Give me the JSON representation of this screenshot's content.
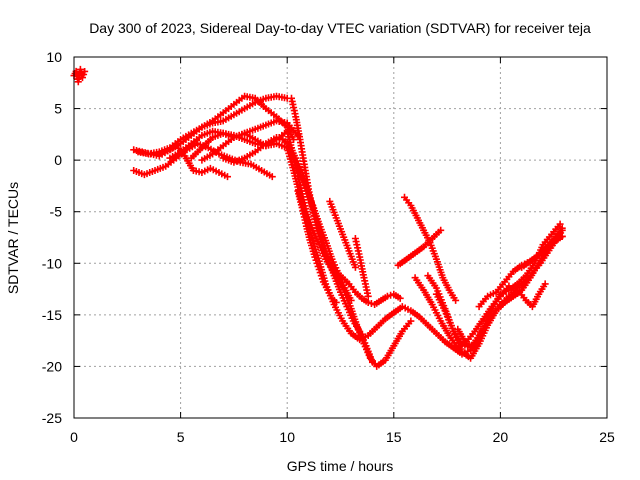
{
  "chart_data": {
    "type": "scatter",
    "title": "Day 300 of 2023, Sidereal Day-to-day VTEC variation (SDTVAR) for receiver teja",
    "xlabel": "GPS time / hours",
    "ylabel": "SDTVAR / TECUs",
    "xlim": [
      0,
      25
    ],
    "ylim": [
      -25,
      10
    ],
    "xticks": [
      "0",
      "5",
      "10",
      "15",
      "20",
      "25"
    ],
    "yticks": [
      "10",
      "5",
      "0",
      "-5",
      "-10",
      "-15",
      "-20",
      "-25"
    ],
    "grid": true,
    "legend": "none",
    "marker": "plus",
    "color": "#ff0000",
    "series": [
      {
        "x": [
          0.0,
          0.1,
          0.2,
          0.3,
          0.4,
          0.5
        ],
        "y": [
          8.2,
          8.6,
          7.6,
          8.8,
          8.0,
          8.6
        ]
      },
      {
        "x": [
          2.8,
          3.2,
          3.6,
          4.0,
          4.4,
          4.8,
          5.2,
          5.6,
          6.0,
          6.4,
          6.8,
          7.2
        ],
        "y": [
          1.0,
          0.8,
          0.6,
          0.4,
          0.9,
          1.4,
          0.4,
          -1.0,
          -1.2,
          -0.8,
          -1.2,
          -1.6
        ]
      },
      {
        "x": [
          2.8,
          3.3,
          3.8,
          4.3,
          4.8,
          5.3,
          5.8,
          6.3,
          6.8,
          7.3,
          7.8,
          8.3,
          8.8,
          9.3
        ],
        "y": [
          -1.0,
          -1.4,
          -1.0,
          -0.6,
          0.2,
          1.0,
          1.6,
          1.2,
          0.6,
          0.2,
          -0.2,
          -0.4,
          -1.0,
          -1.6
        ]
      },
      {
        "x": [
          3.0,
          3.5,
          4.0,
          4.5,
          5.0,
          5.5,
          6.0,
          6.5,
          7.0,
          7.5,
          8.0,
          8.5,
          9.0,
          9.5,
          10.0
        ],
        "y": [
          0.8,
          0.6,
          0.8,
          1.2,
          2.0,
          2.6,
          3.2,
          3.6,
          3.8,
          4.4,
          5.0,
          5.6,
          6.0,
          6.2,
          6.0
        ]
      },
      {
        "x": [
          4.0,
          4.5,
          5.0,
          5.5,
          6.0,
          6.5,
          7.0,
          7.5,
          8.0,
          8.5,
          9.0,
          9.5,
          10.0,
          10.3
        ],
        "y": [
          0.6,
          1.0,
          1.6,
          2.4,
          3.2,
          3.8,
          4.6,
          5.4,
          6.2,
          6.0,
          5.0,
          4.2,
          3.2,
          2.0
        ]
      },
      {
        "x": [
          4.5,
          5.0,
          5.5,
          6.0,
          6.5,
          7.0,
          7.5,
          8.0,
          8.5,
          9.0,
          9.5,
          10.0,
          10.5
        ],
        "y": [
          0.2,
          0.8,
          1.6,
          2.4,
          2.8,
          2.6,
          2.2,
          2.6,
          3.0,
          3.4,
          3.8,
          3.6,
          2.4
        ]
      },
      {
        "x": [
          5.5,
          6.0,
          6.5,
          7.0,
          7.5,
          8.0,
          8.5,
          9.0,
          9.5,
          10.0,
          10.3,
          10.6,
          10.9,
          11.2,
          11.5,
          11.8,
          12.2,
          12.6,
          13.0,
          13.4,
          13.8,
          14.2,
          14.6,
          15.0,
          15.4,
          15.8,
          16.2,
          16.6,
          17.0,
          17.4,
          17.8,
          18.2,
          18.6,
          19.0
        ],
        "y": [
          0.2,
          1.2,
          2.2,
          2.6,
          2.4,
          2.0,
          1.6,
          1.4,
          1.6,
          1.2,
          -1.0,
          -3.4,
          -5.6,
          -7.8,
          -9.8,
          -12.0,
          -14.0,
          -15.6,
          -16.8,
          -17.4,
          -17.0,
          -16.2,
          -15.4,
          -14.8,
          -14.2,
          -14.6,
          -15.2,
          -16.0,
          -16.8,
          -17.6,
          -18.2,
          -18.8,
          -18.4,
          -17.4
        ]
      },
      {
        "x": [
          6.0,
          6.5,
          7.0,
          7.5,
          8.0,
          8.5,
          9.0,
          9.5,
          10.0,
          10.3,
          10.6,
          10.9,
          11.2,
          11.5,
          11.8,
          12.1,
          12.4,
          12.7,
          13.0,
          13.3,
          13.6,
          13.9,
          14.2,
          14.6,
          15.0,
          15.4,
          15.8
        ],
        "y": [
          0.0,
          0.6,
          1.4,
          2.2,
          2.6,
          2.0,
          1.4,
          2.0,
          2.8,
          0.4,
          -2.4,
          -5.0,
          -6.8,
          -8.2,
          -9.6,
          -10.6,
          -11.6,
          -12.8,
          -14.4,
          -16.2,
          -17.8,
          -19.2,
          -20.0,
          -19.4,
          -18.0,
          -16.6,
          -15.6
        ]
      },
      {
        "x": [
          7.0,
          7.5,
          8.0,
          8.5,
          9.0,
          9.5,
          9.8,
          10.1,
          10.4,
          10.7,
          11.0,
          11.3,
          11.6,
          11.9,
          12.2,
          12.5,
          12.8,
          13.1,
          13.4,
          13.7,
          14.0
        ],
        "y": [
          0.2,
          -0.2,
          0.2,
          0.8,
          1.6,
          2.2,
          2.0,
          1.4,
          0.2,
          -1.2,
          -3.2,
          -5.2,
          -7.4,
          -9.4,
          -11.2,
          -12.8,
          -14.2,
          -15.6,
          -16.6,
          -18.0,
          -19.6
        ]
      },
      {
        "x": [
          10.2,
          10.4,
          10.6,
          10.8,
          11.0,
          11.2,
          11.4,
          11.6,
          11.8,
          12.0,
          12.3,
          12.6,
          12.9,
          13.2,
          13.5,
          13.8,
          14.1,
          14.4,
          14.7,
          15.0,
          15.3
        ],
        "y": [
          6.0,
          4.2,
          2.0,
          -0.4,
          -2.8,
          -4.8,
          -6.6,
          -8.0,
          -9.2,
          -10.0,
          -10.8,
          -11.4,
          -12.0,
          -12.8,
          -13.4,
          -13.8,
          -14.0,
          -13.6,
          -13.2,
          -13.0,
          -13.4
        ]
      },
      {
        "x": [
          10.0,
          10.3,
          10.6,
          10.9,
          11.2,
          11.5,
          11.8,
          12.1,
          12.4,
          12.7,
          13.0
        ],
        "y": [
          1.6,
          0.0,
          -1.4,
          -3.0,
          -4.4,
          -6.2,
          -7.8,
          -9.6,
          -11.0,
          -12.4,
          -13.6
        ]
      },
      {
        "x": [
          10.5,
          10.7,
          10.9,
          11.1,
          11.3,
          11.5,
          11.7,
          11.9,
          12.1,
          12.3
        ],
        "y": [
          -3.0,
          -4.6,
          -6.4,
          -8.0,
          -9.4,
          -10.6,
          -11.8,
          -12.6,
          -13.4,
          -13.8
        ]
      },
      {
        "x": [
          12.0,
          12.3,
          12.6,
          12.9,
          13.2
        ],
        "y": [
          -4.0,
          -5.6,
          -7.2,
          -8.8,
          -10.4
        ]
      },
      {
        "x": [
          13.2,
          13.4,
          13.6,
          13.8
        ],
        "y": [
          -7.6,
          -9.4,
          -11.4,
          -13.2
        ]
      },
      {
        "x": [
          15.5,
          15.8,
          16.1,
          16.4,
          16.7,
          17.0,
          17.3,
          17.6,
          17.9
        ],
        "y": [
          -3.6,
          -4.4,
          -5.6,
          -6.8,
          -8.0,
          -9.6,
          -11.4,
          -12.6,
          -13.6
        ]
      },
      {
        "x": [
          15.2,
          15.6,
          16.0,
          16.4,
          16.8,
          17.2
        ],
        "y": [
          -10.2,
          -9.6,
          -9.0,
          -8.4,
          -7.6,
          -6.8
        ]
      },
      {
        "x": [
          16.0,
          16.4,
          16.8,
          17.2,
          17.6,
          18.0,
          18.4,
          18.8,
          19.2,
          19.6,
          20.0,
          20.4
        ],
        "y": [
          -11.4,
          -12.6,
          -14.0,
          -15.6,
          -17.0,
          -18.2,
          -17.6,
          -16.6,
          -15.4,
          -14.2,
          -13.2,
          -12.2
        ]
      },
      {
        "x": [
          16.6,
          17.0,
          17.4,
          17.8,
          18.2,
          18.6,
          19.0,
          19.4,
          19.8,
          20.2,
          20.6,
          21.0,
          21.4,
          21.8,
          22.2,
          22.6,
          22.9
        ],
        "y": [
          -11.2,
          -12.4,
          -14.4,
          -16.6,
          -17.8,
          -18.2,
          -17.0,
          -15.6,
          -14.6,
          -13.8,
          -13.2,
          -12.6,
          -11.4,
          -10.0,
          -8.6,
          -7.4,
          -6.6
        ]
      },
      {
        "x": [
          17.0,
          17.4,
          17.8,
          18.2,
          18.6,
          19.0,
          19.4,
          19.8,
          20.2,
          20.6,
          21.0,
          21.4,
          21.8,
          22.2,
          22.6,
          22.9
        ],
        "y": [
          -13.0,
          -14.6,
          -16.6,
          -18.6,
          -19.2,
          -17.8,
          -16.0,
          -14.6,
          -13.6,
          -12.8,
          -12.0,
          -11.2,
          -10.2,
          -9.0,
          -7.8,
          -6.8
        ]
      },
      {
        "x": [
          18.0,
          18.4,
          18.8,
          19.2,
          19.6,
          20.0,
          20.4,
          20.8,
          21.2,
          21.6,
          22.0,
          22.4,
          22.8
        ],
        "y": [
          -16.4,
          -17.8,
          -18.0,
          -16.4,
          -14.4,
          -13.0,
          -12.6,
          -12.0,
          -11.2,
          -10.0,
          -8.2,
          -7.2,
          -6.2
        ]
      },
      {
        "x": [
          19.0,
          19.4,
          19.8,
          20.2,
          20.6,
          21.0,
          21.4,
          21.8,
          22.2,
          22.6,
          22.9
        ],
        "y": [
          -14.2,
          -13.2,
          -12.8,
          -11.8,
          -10.8,
          -10.2,
          -9.8,
          -9.2,
          -8.4,
          -7.6,
          -7.4
        ]
      },
      {
        "x": [
          20.0,
          20.3,
          20.6,
          20.9,
          21.2,
          21.5,
          21.8,
          22.1
        ],
        "y": [
          -14.0,
          -13.6,
          -13.2,
          -12.8,
          -13.6,
          -14.2,
          -13.0,
          -12.0
        ]
      },
      {
        "x": [
          21.0,
          21.4,
          21.8,
          22.2,
          22.6,
          22.9
        ],
        "y": [
          -10.4,
          -9.8,
          -9.2,
          -8.4,
          -7.8,
          -7.4
        ]
      }
    ]
  }
}
